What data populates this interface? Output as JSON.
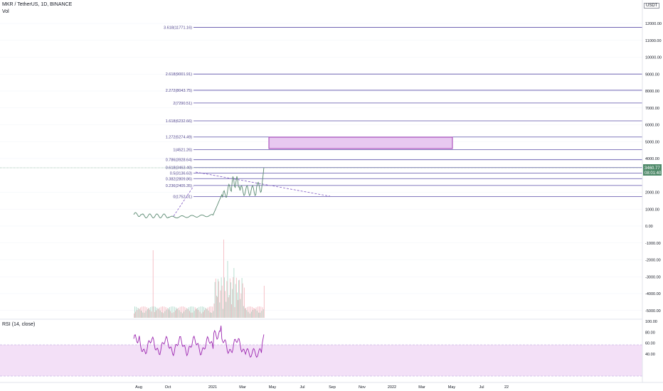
{
  "header": {
    "symbol_title": "MKR / TetherUS, 1D, BINANCE",
    "volume_label": "Vol",
    "currency_unit": "USDT"
  },
  "price_axis": {
    "ticks": [
      "12000.00",
      "11000.00",
      "10000.00",
      "9000.00",
      "8000.00",
      "7000.00",
      "6000.00",
      "5000.00",
      "4000.00",
      "2000.00",
      "1000.00",
      "0.00",
      "-1000.00",
      "-2000.00",
      "-3000.00",
      "-4000.00",
      "-5000.00"
    ],
    "last_price": "3460.77",
    "countdown": "08:01:40"
  },
  "fibonacci": [
    {
      "label": "3.618(11771.16)",
      "value": 11771.16
    },
    {
      "label": "2.618(9001.91)",
      "value": 9001.91
    },
    {
      "label": "2.272(8043.75)",
      "value": 8043.75
    },
    {
      "label": "2(7290.51)",
      "value": 7290.51
    },
    {
      "label": "1.618(6232.66)",
      "value": 6232.66
    },
    {
      "label": "1.272(5274.49)",
      "value": 5274.49
    },
    {
      "label": "1(4521.26)",
      "value": 4521.26
    },
    {
      "label": "0.786(3928.64)",
      "value": 3928.64
    },
    {
      "label": "0.618(3463.40)",
      "value": 3463.4
    },
    {
      "label": "0.5(3136.63)",
      "value": 3136.63
    },
    {
      "label": "0.382(2809.86)",
      "value": 2809.86
    },
    {
      "label": "0.236(2405.35)",
      "value": 2405.35
    },
    {
      "label": "0(1752.01)",
      "value": 1752.01
    }
  ],
  "rsi": {
    "label": "RSI (14, close)",
    "ticks": [
      "100.00",
      "80.00",
      "60.00",
      "40.00"
    ]
  },
  "time_axis": {
    "ticks": [
      "Aug",
      "Oct",
      "2021",
      "Mar",
      "May",
      "Jul",
      "Sep",
      "Nov",
      "2022",
      "Mar",
      "May",
      "Jul",
      "22"
    ]
  },
  "colors": {
    "fib_line": "#5b4fa8",
    "rect_fill": "#e8c9f0",
    "rect_stroke": "#a23bb5",
    "price_line": "#5b8a72",
    "rsi_line": "#9c27b0",
    "rsi_band": "#f3e0f7",
    "last_price_bg": "#4f8a6a"
  }
}
